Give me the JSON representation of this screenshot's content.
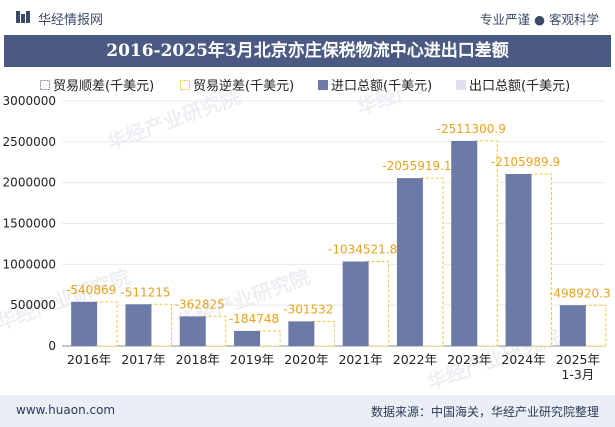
{
  "header": {
    "brand": "华经情报网",
    "tagline_left": "专业严谨",
    "tagline_sep": "●",
    "tagline_right": "客观科学"
  },
  "title": "2016-2025年3月北京亦庄保税物流中心进出口差额",
  "legend": [
    {
      "label": "贸易顺差(千美元)",
      "style": "hatched-blue"
    },
    {
      "label": "贸易逆差(千美元)",
      "style": "hatched-yellow"
    },
    {
      "label": "进口总额(千美元)",
      "style": "solid-slate"
    },
    {
      "label": "出口总额(千美元)",
      "style": "solid-light"
    }
  ],
  "footer": {
    "left": "www.huaon.com",
    "right": "数据来源：中国海关，华经产业研究院整理"
  },
  "watermark": "华经产业研究院",
  "colors": {
    "title_band": "#4a5a82",
    "import_bar": "#6b7aa6",
    "deficit_border": "#f2c63c",
    "label_color": "#e9a21b",
    "footer_band": "#eaeef6"
  },
  "chart_data": {
    "type": "bar",
    "categories": [
      "2016年",
      "2017年",
      "2018年",
      "2019年",
      "2020年",
      "2021年",
      "2022年",
      "2023年",
      "2024年",
      "2025年\n1-3月"
    ],
    "y_ticks": [
      "0",
      "500000",
      "1000000",
      "1500000",
      "2000000",
      "2500000",
      "3000000"
    ],
    "ylim": [
      0,
      3000000
    ],
    "series": [
      {
        "name": "进口总额(千美元)",
        "values": [
          540869,
          511215,
          362825,
          184748,
          301532,
          1034521.8,
          2055919.1,
          2511300.9,
          2105989.9,
          498920.3
        ]
      },
      {
        "name": "出口总额(千美元)",
        "values": [
          0,
          0,
          0,
          0,
          0,
          0,
          0,
          0,
          0,
          0
        ]
      },
      {
        "name": "贸易逆差(千美元)",
        "values": [
          540869,
          511215,
          362825,
          184748,
          301532,
          1034521.8,
          2055919.1,
          2511300.9,
          2105989.9,
          498920.3
        ]
      }
    ],
    "data_labels": [
      "-540869",
      "-511215",
      "-362825",
      "-184748",
      "-301532",
      "-1034521.8",
      "-2055919.1",
      "-2511300.9",
      "-2105989.9",
      "-498920.3"
    ]
  }
}
